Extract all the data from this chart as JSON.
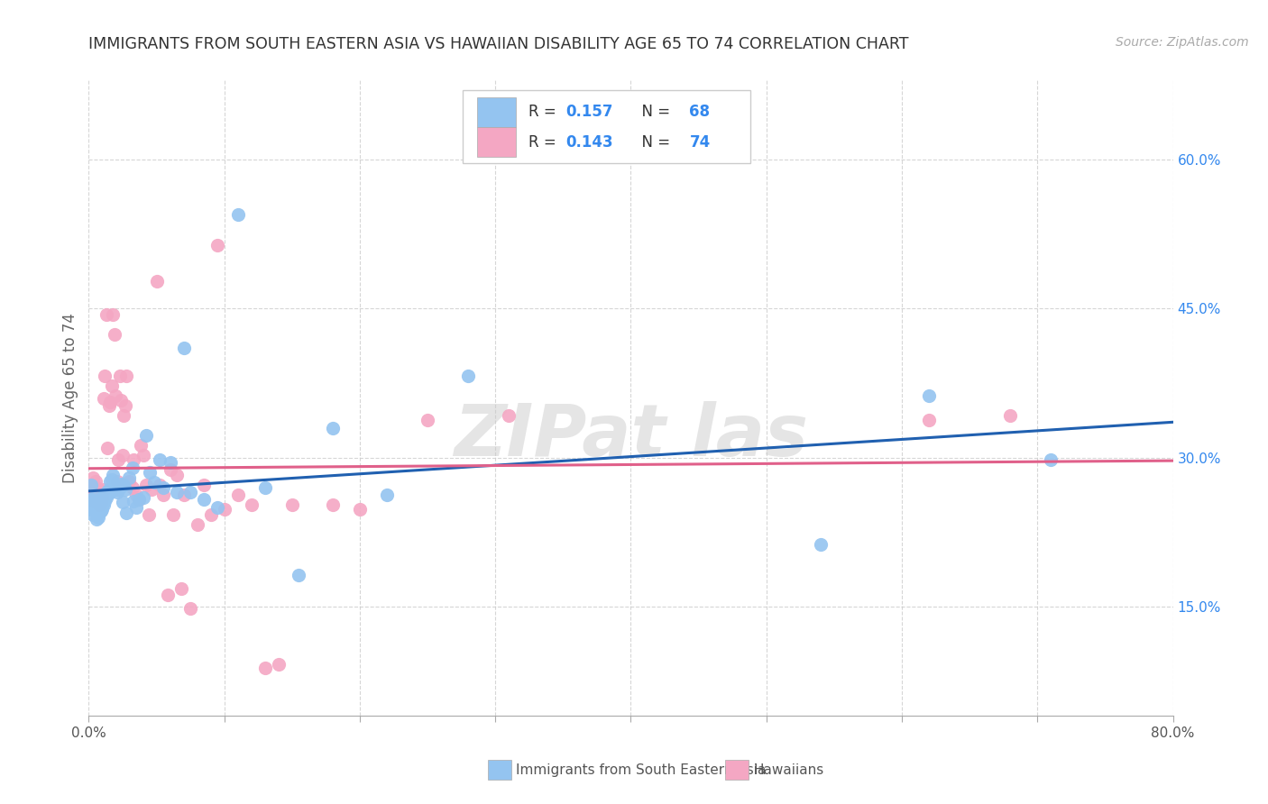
{
  "title": "IMMIGRANTS FROM SOUTH EASTERN ASIA VS HAWAIIAN DISABILITY AGE 65 TO 74 CORRELATION CHART",
  "source": "Source: ZipAtlas.com",
  "ylabel": "Disability Age 65 to 74",
  "ytick_values": [
    0.15,
    0.3,
    0.45,
    0.6
  ],
  "ytick_labels": [
    "15.0%",
    "30.0%",
    "45.0%",
    "60.0%"
  ],
  "xmin": 0.0,
  "xmax": 0.8,
  "ymin": 0.04,
  "ymax": 0.68,
  "series1_label": "Immigrants from South Eastern Asia",
  "series2_label": "Hawaiians",
  "color1": "#94c4f0",
  "color2": "#f4a7c3",
  "line_color1": "#2060b0",
  "line_color2": "#e0608a",
  "text_blue": "#3388ee",
  "background_color": "#ffffff",
  "series1_x": [
    0.001,
    0.002,
    0.002,
    0.003,
    0.003,
    0.004,
    0.004,
    0.005,
    0.005,
    0.006,
    0.006,
    0.007,
    0.007,
    0.007,
    0.008,
    0.008,
    0.009,
    0.009,
    0.01,
    0.01,
    0.01,
    0.011,
    0.011,
    0.012,
    0.012,
    0.013,
    0.014,
    0.015,
    0.015,
    0.016,
    0.017,
    0.018,
    0.019,
    0.02,
    0.021,
    0.022,
    0.023,
    0.024,
    0.025,
    0.026,
    0.027,
    0.028,
    0.03,
    0.032,
    0.033,
    0.035,
    0.037,
    0.04,
    0.042,
    0.045,
    0.048,
    0.052,
    0.055,
    0.06,
    0.065,
    0.07,
    0.075,
    0.085,
    0.095,
    0.11,
    0.13,
    0.155,
    0.18,
    0.22,
    0.28,
    0.54,
    0.62,
    0.71
  ],
  "series1_y": [
    0.248,
    0.258,
    0.272,
    0.242,
    0.256,
    0.248,
    0.26,
    0.245,
    0.255,
    0.238,
    0.242,
    0.25,
    0.255,
    0.24,
    0.245,
    0.252,
    0.246,
    0.256,
    0.248,
    0.252,
    0.26,
    0.252,
    0.262,
    0.262,
    0.256,
    0.26,
    0.266,
    0.268,
    0.264,
    0.276,
    0.278,
    0.282,
    0.268,
    0.27,
    0.265,
    0.268,
    0.27,
    0.273,
    0.255,
    0.272,
    0.268,
    0.244,
    0.28,
    0.29,
    0.256,
    0.25,
    0.258,
    0.26,
    0.322,
    0.285,
    0.275,
    0.298,
    0.27,
    0.295,
    0.265,
    0.41,
    0.265,
    0.258,
    0.25,
    0.545,
    0.27,
    0.182,
    0.33,
    0.262,
    0.382,
    0.212,
    0.362,
    0.298
  ],
  "series2_x": [
    0.001,
    0.002,
    0.002,
    0.003,
    0.003,
    0.004,
    0.004,
    0.005,
    0.005,
    0.006,
    0.006,
    0.007,
    0.007,
    0.008,
    0.008,
    0.009,
    0.009,
    0.01,
    0.01,
    0.011,
    0.011,
    0.012,
    0.013,
    0.014,
    0.015,
    0.016,
    0.017,
    0.018,
    0.019,
    0.02,
    0.021,
    0.022,
    0.023,
    0.024,
    0.025,
    0.026,
    0.027,
    0.028,
    0.03,
    0.032,
    0.033,
    0.035,
    0.037,
    0.038,
    0.04,
    0.042,
    0.044,
    0.046,
    0.05,
    0.052,
    0.055,
    0.058,
    0.06,
    0.062,
    0.065,
    0.068,
    0.07,
    0.075,
    0.08,
    0.085,
    0.09,
    0.095,
    0.1,
    0.11,
    0.12,
    0.13,
    0.14,
    0.15,
    0.18,
    0.2,
    0.25,
    0.31,
    0.62,
    0.68
  ],
  "series2_y": [
    0.262,
    0.27,
    0.265,
    0.28,
    0.26,
    0.256,
    0.272,
    0.266,
    0.276,
    0.265,
    0.27,
    0.268,
    0.264,
    0.252,
    0.26,
    0.255,
    0.26,
    0.26,
    0.265,
    0.268,
    0.36,
    0.382,
    0.444,
    0.31,
    0.352,
    0.356,
    0.372,
    0.444,
    0.424,
    0.362,
    0.276,
    0.298,
    0.382,
    0.358,
    0.302,
    0.342,
    0.352,
    0.382,
    0.276,
    0.27,
    0.298,
    0.262,
    0.258,
    0.312,
    0.302,
    0.272,
    0.242,
    0.268,
    0.478,
    0.272,
    0.262,
    0.162,
    0.288,
    0.242,
    0.282,
    0.168,
    0.262,
    0.148,
    0.232,
    0.272,
    0.242,
    0.514,
    0.248,
    0.262,
    0.252,
    0.088,
    0.092,
    0.252,
    0.252,
    0.248,
    0.338,
    0.342,
    0.338,
    0.342
  ]
}
